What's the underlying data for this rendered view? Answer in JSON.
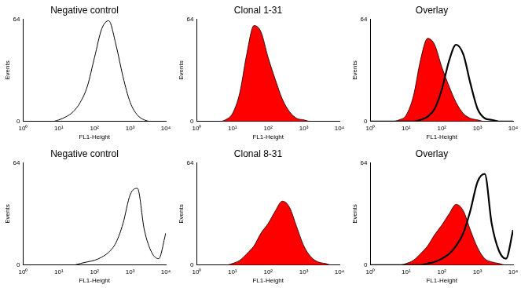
{
  "chart_data": [
    {
      "type": "line",
      "title": "Negative control",
      "xlabel": "FL1-Height",
      "ylabel": "Events",
      "log": "x",
      "grid": false,
      "xlim": [
        1,
        10000
      ],
      "ylim": [
        0,
        64
      ],
      "xticks": [
        {
          "value": 1,
          "label": "10⁰"
        },
        {
          "value": 10,
          "label": "10¹"
        },
        {
          "value": 100,
          "label": "10²"
        },
        {
          "value": 1000,
          "label": "10³"
        },
        {
          "value": 10000,
          "label": "10⁴"
        }
      ],
      "yticks": [
        0,
        64
      ],
      "x": [
        1,
        1.6,
        2.5,
        4,
        6.3,
        10,
        16,
        25,
        40,
        63,
        100,
        160,
        250,
        400,
        630,
        1000,
        1600,
        2500,
        4000,
        6300,
        10000
      ],
      "series": [
        {
          "name": "Negative control",
          "type": "line",
          "color": "#000000",
          "values": [
            0,
            0,
            0,
            0,
            0,
            1,
            3,
            6,
            12,
            22,
            40,
            58,
            63,
            48,
            28,
            12,
            4,
            1,
            0,
            0,
            0
          ]
        }
      ]
    },
    {
      "type": "line",
      "title": "Clonal 1-31",
      "xlabel": "FL1-Height",
      "ylabel": "Events",
      "log": "x",
      "grid": false,
      "xlim": [
        1,
        10000
      ],
      "ylim": [
        0,
        64
      ],
      "xticks": [
        {
          "value": 1,
          "label": "10⁰"
        },
        {
          "value": 10,
          "label": "10¹"
        },
        {
          "value": 100,
          "label": "10²"
        },
        {
          "value": 1000,
          "label": "10³"
        },
        {
          "value": 10000,
          "label": "10⁴"
        }
      ],
      "yticks": [
        0,
        64
      ],
      "x": [
        1,
        1.6,
        2.5,
        4,
        6.3,
        10,
        16,
        25,
        40,
        63,
        100,
        160,
        250,
        400,
        630,
        1000,
        1600,
        2500,
        4000,
        6300,
        10000
      ],
      "series": [
        {
          "name": "Clonal 1-31",
          "type": "area",
          "color": "#ff0000",
          "values": [
            0,
            0,
            0,
            0,
            1,
            5,
            18,
            42,
            60,
            56,
            40,
            26,
            14,
            6,
            2,
            1,
            0,
            0,
            0,
            0,
            0
          ]
        }
      ]
    },
    {
      "type": "line",
      "title": "Overlay",
      "xlabel": "FL1-Height",
      "ylabel": "Events",
      "log": "x",
      "grid": false,
      "xlim": [
        1,
        10000
      ],
      "ylim": [
        0,
        64
      ],
      "xticks": [
        {
          "value": 1,
          "label": "10⁰"
        },
        {
          "value": 10,
          "label": "10¹"
        },
        {
          "value": 100,
          "label": "10²"
        },
        {
          "value": 1000,
          "label": "10³"
        },
        {
          "value": 10000,
          "label": "10⁴"
        }
      ],
      "yticks": [
        0,
        64
      ],
      "x": [
        1,
        1.6,
        2.5,
        4,
        6.3,
        10,
        16,
        25,
        40,
        63,
        100,
        160,
        250,
        400,
        630,
        1000,
        1600,
        2500,
        4000,
        6300,
        10000
      ],
      "series": [
        {
          "name": "Clonal 1-31",
          "type": "area",
          "color": "#ff0000",
          "values": [
            0,
            0,
            0,
            0,
            1,
            4,
            16,
            38,
            52,
            48,
            34,
            22,
            12,
            5,
            2,
            1,
            0,
            0,
            0,
            0,
            0
          ]
        },
        {
          "name": "Negative control",
          "type": "line",
          "color": "#000000",
          "values": [
            0,
            0,
            0,
            0,
            0,
            0,
            0,
            1,
            3,
            8,
            20,
            38,
            48,
            42,
            24,
            8,
            2,
            1,
            0,
            0,
            0
          ]
        }
      ]
    },
    {
      "type": "line",
      "title": "Negative control",
      "xlabel": "FL1-Height",
      "ylabel": "Events",
      "log": "x",
      "grid": false,
      "xlim": [
        1,
        10000
      ],
      "ylim": [
        0,
        64
      ],
      "xticks": [
        {
          "value": 1,
          "label": "10⁰"
        },
        {
          "value": 10,
          "label": "10¹"
        },
        {
          "value": 100,
          "label": "10²"
        },
        {
          "value": 1000,
          "label": "10³"
        },
        {
          "value": 10000,
          "label": "10⁴"
        }
      ],
      "yticks": [
        0,
        64
      ],
      "x": [
        1,
        1.6,
        2.5,
        4,
        6.3,
        10,
        16,
        25,
        40,
        63,
        100,
        160,
        250,
        400,
        630,
        1000,
        1600,
        2500,
        4000,
        6300,
        10000
      ],
      "series": [
        {
          "name": "Negative control",
          "type": "line",
          "color": "#000000",
          "values": [
            0,
            0,
            0,
            0,
            0,
            0,
            0,
            0,
            1,
            2,
            3,
            5,
            8,
            14,
            26,
            44,
            48,
            22,
            8,
            4,
            20
          ]
        }
      ]
    },
    {
      "type": "line",
      "title": "Clonal 8-31",
      "xlabel": "FL1-Height",
      "ylabel": "Events",
      "log": "x",
      "grid": false,
      "xlim": [
        1,
        10000
      ],
      "ylim": [
        0,
        64
      ],
      "xticks": [
        {
          "value": 1,
          "label": "10⁰"
        },
        {
          "value": 10,
          "label": "10¹"
        },
        {
          "value": 100,
          "label": "10²"
        },
        {
          "value": 1000,
          "label": "10³"
        },
        {
          "value": 10000,
          "label": "10⁴"
        }
      ],
      "yticks": [
        0,
        64
      ],
      "x": [
        1,
        1.6,
        2.5,
        4,
        6.3,
        10,
        16,
        25,
        40,
        63,
        100,
        160,
        250,
        400,
        630,
        1000,
        1600,
        2500,
        4000,
        6300,
        10000
      ],
      "series": [
        {
          "name": "Clonal 8-31",
          "type": "area",
          "color": "#ff0000",
          "values": [
            0,
            0,
            0,
            0,
            0,
            1,
            3,
            7,
            12,
            20,
            26,
            34,
            40,
            36,
            24,
            12,
            5,
            2,
            1,
            0,
            0
          ]
        }
      ]
    },
    {
      "type": "line",
      "title": "Overlay",
      "xlabel": "FL1-Height",
      "ylabel": "Events",
      "log": "x",
      "grid": false,
      "xlim": [
        1,
        10000
      ],
      "ylim": [
        0,
        64
      ],
      "xticks": [
        {
          "value": 1,
          "label": "10⁰"
        },
        {
          "value": 10,
          "label": "10¹"
        },
        {
          "value": 100,
          "label": "10²"
        },
        {
          "value": 1000,
          "label": "10³"
        },
        {
          "value": 10000,
          "label": "10⁴"
        }
      ],
      "yticks": [
        0,
        64
      ],
      "x": [
        1,
        1.6,
        2.5,
        4,
        6.3,
        10,
        16,
        25,
        40,
        63,
        100,
        160,
        250,
        400,
        630,
        1000,
        1600,
        2500,
        4000,
        6300,
        10000
      ],
      "series": [
        {
          "name": "Clonal 8-31",
          "type": "area",
          "color": "#ff0000",
          "values": [
            0,
            0,
            0,
            0,
            0,
            1,
            3,
            7,
            12,
            19,
            25,
            32,
            38,
            34,
            22,
            11,
            4,
            2,
            1,
            0,
            0
          ]
        },
        {
          "name": "Negative control",
          "type": "line",
          "color": "#000000",
          "values": [
            0,
            0,
            0,
            0,
            0,
            0,
            0,
            0,
            1,
            2,
            4,
            7,
            12,
            20,
            34,
            52,
            57,
            26,
            9,
            4,
            22
          ]
        }
      ]
    }
  ]
}
